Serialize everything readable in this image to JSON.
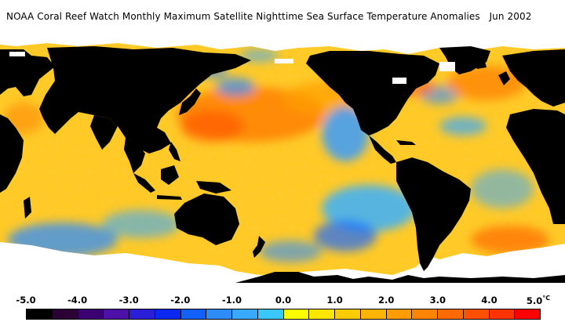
{
  "title": "NOAA Coral Reef Watch Monthly Maximum Satellite Nighttime Sea Surface Temperature Anomalies",
  "date": "Jun 2002",
  "legend": {
    "ticks": [
      "-5.0",
      "-4.0",
      "-3.0",
      "-2.0",
      "-1.0",
      "0.0",
      "1.0",
      "2.0",
      "3.0",
      "4.0",
      "5.0"
    ],
    "unit": "°C",
    "colors": [
      "#000000",
      "#2a0035",
      "#3b0072",
      "#4d10a8",
      "#2a1fd6",
      "#0a28f0",
      "#1260ff",
      "#2e8cff",
      "#39a8ff",
      "#3ac7ff",
      "#ffff00",
      "#ffe600",
      "#ffcc00",
      "#ffb400",
      "#ff9c00",
      "#ff8400",
      "#ff6a00",
      "#ff4f00",
      "#ff3300",
      "#ff0000"
    ]
  },
  "map": {
    "land_color": "#000000",
    "ice_color": "#ffffff",
    "ocean_base_color": "#ffcc33"
  }
}
